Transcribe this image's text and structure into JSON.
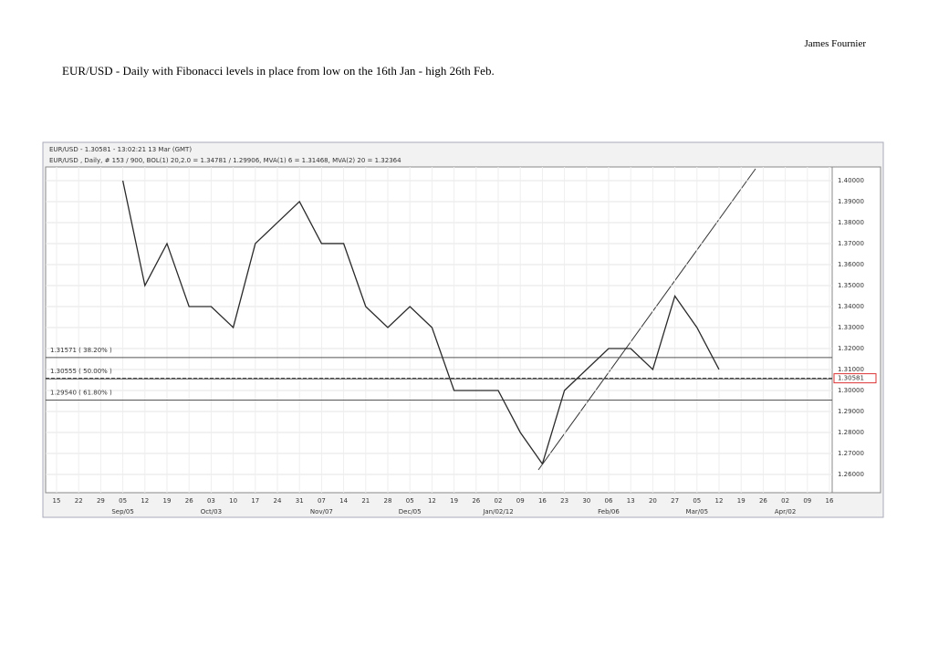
{
  "header": {
    "author": "James Fournier"
  },
  "title": "EUR/USD - Daily with Fibonacci levels in place from low on the 16th Jan - high 26th Feb.",
  "chart_data": {
    "type": "line",
    "title": "EUR/USD - 1.30581 - 13:02:21 13 Mar (GMT)",
    "subtitle": "EUR/USD , Daily, # 153 / 900, BOL(1) 20,2.0 = 1.34781 / 1.29906, MVA(1) 6 = 1.31468, MVA(2) 20 = 1.32364",
    "categories": [
      "15",
      "22",
      "29",
      "05",
      "12",
      "19",
      "26",
      "03",
      "10",
      "17",
      "24",
      "31",
      "07",
      "14",
      "21",
      "28",
      "05",
      "12",
      "19",
      "26",
      "02",
      "09",
      "16",
      "23",
      "30",
      "06",
      "13",
      "20",
      "27",
      "05",
      "12",
      "19",
      "26",
      "02",
      "09",
      "16"
    ],
    "month_labels": [
      null,
      null,
      null,
      "Sep/05",
      null,
      null,
      null,
      "Oct/03",
      null,
      null,
      null,
      null,
      "Nov/07",
      null,
      null,
      null,
      "Dec/05",
      null,
      null,
      null,
      "Jan/02/12",
      null,
      null,
      null,
      null,
      "Feb/06",
      null,
      null,
      null,
      "Mar/05",
      null,
      null,
      null,
      "Apr/02",
      null,
      null
    ],
    "series": [
      {
        "name": "EUR/USD",
        "color": "#2a2a2a",
        "values": [
          null,
          null,
          null,
          1.4,
          1.35,
          1.37,
          1.34,
          1.34,
          1.33,
          1.37,
          1.38,
          1.39,
          1.37,
          1.37,
          1.34,
          1.33,
          1.34,
          1.33,
          1.3,
          1.3,
          1.3,
          1.28,
          1.265,
          1.3,
          1.31,
          1.32,
          1.32,
          1.31,
          1.345,
          1.33,
          1.31,
          null,
          null,
          null,
          null,
          null
        ]
      }
    ],
    "ylim": [
      1.2513,
      1.4065
    ],
    "yticks": [
      {
        "value": 1.26,
        "label": "1.26000"
      },
      {
        "value": 1.27,
        "label": "1.27000"
      },
      {
        "value": 1.28,
        "label": "1.28000"
      },
      {
        "value": 1.29,
        "label": "1.29000"
      },
      {
        "value": 1.3,
        "label": "1.30000"
      },
      {
        "value": 1.31,
        "label": "1.31000"
      },
      {
        "value": 1.32,
        "label": "1.32000"
      },
      {
        "value": 1.33,
        "label": "1.33000"
      },
      {
        "value": 1.34,
        "label": "1.34000"
      },
      {
        "value": 1.35,
        "label": "1.35000"
      },
      {
        "value": 1.36,
        "label": "1.36000"
      },
      {
        "value": 1.37,
        "label": "1.37000"
      },
      {
        "value": 1.38,
        "label": "1.38000"
      },
      {
        "value": 1.39,
        "label": "1.39000"
      },
      {
        "value": 1.4,
        "label": "1.40000"
      }
    ],
    "fib_levels": [
      {
        "value": 1.31571,
        "label": "1.31571 ( 38.20% )"
      },
      {
        "value": 1.30555,
        "label": "1.30555 ( 50.00% )"
      },
      {
        "value": 1.2954,
        "label": "1.29540 ( 61.80% )"
      }
    ],
    "last_price": 1.30581,
    "grid": true
  }
}
